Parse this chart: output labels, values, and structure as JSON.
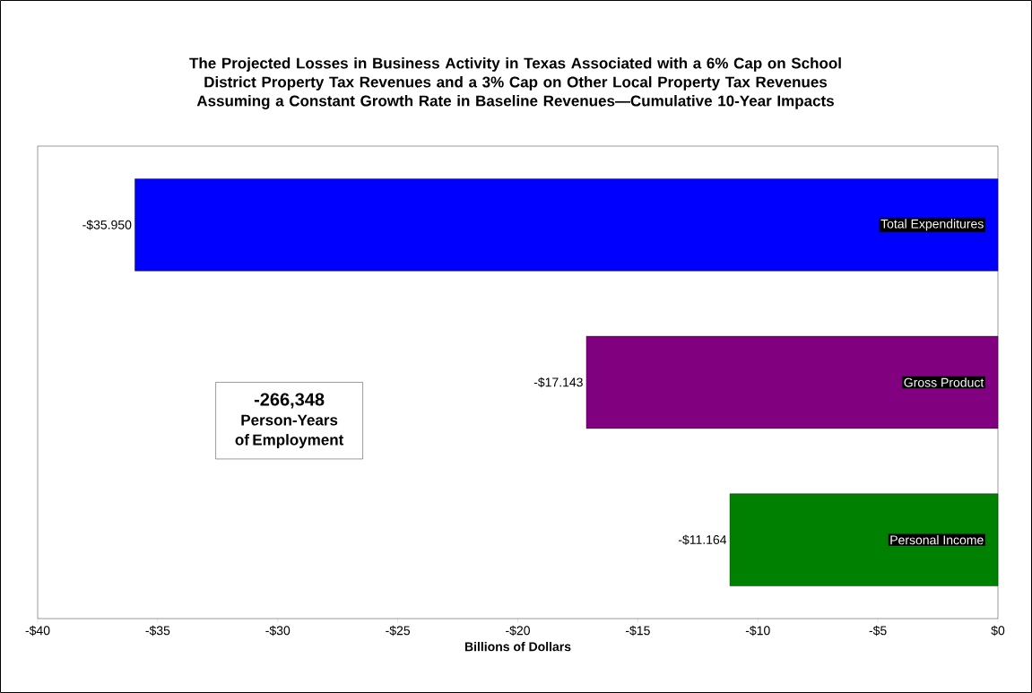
{
  "chart_data": {
    "type": "bar",
    "orientation": "horizontal",
    "title": "The Projected Losses in Business Activity in Texas Associated with a 6% Cap on School District Property Tax Revenues and a 3% Cap on Other Local Property Tax Revenues Assuming a Constant Growth Rate in Baseline Revenues—Cumulative 10-Year Impacts",
    "xlabel": "Billions of Dollars",
    "categories": [
      "Total Expenditures",
      "Gross Product",
      "Personal Income"
    ],
    "values": [
      -35.95,
      -17.143,
      -11.164
    ],
    "value_labels": [
      "-$35.950",
      "-$17.143",
      "-$11.164"
    ],
    "colors": [
      "#0000ff",
      "#800080",
      "#008000"
    ],
    "xlim": [
      -40,
      0
    ],
    "xticks": [
      {
        "value": -40,
        "label": "-$40"
      },
      {
        "value": -35,
        "label": "-$35"
      },
      {
        "value": -30,
        "label": "-$30"
      },
      {
        "value": -25,
        "label": "-$25"
      },
      {
        "value": -20,
        "label": "-$20"
      },
      {
        "value": -15,
        "label": "-$15"
      },
      {
        "value": -10,
        "label": "-$10"
      },
      {
        "value": -5,
        "label": "-$5"
      },
      {
        "value": 0,
        "label": "$0"
      }
    ],
    "annotations": [
      "-266,348",
      "Person-Years of Employment"
    ]
  }
}
